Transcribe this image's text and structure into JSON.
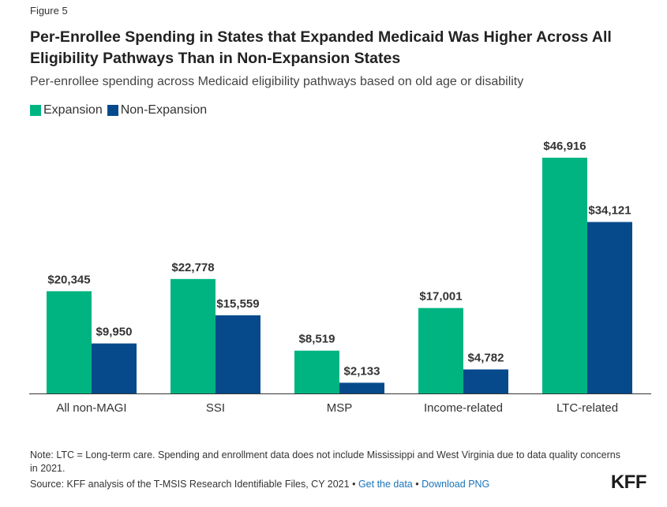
{
  "figure_label": "Figure 5",
  "title": "Per-Enrollee Spending in States that Expanded Medicaid Was Higher Across All Eligibility Pathways Than in Non-Expansion States",
  "subtitle": "Per-enrollee spending across Medicaid eligibility pathways based on old age or disability",
  "colors": {
    "expansion": "#00b482",
    "non_expansion": "#064a8c",
    "axis": "#333333"
  },
  "chart_data": {
    "type": "bar",
    "categories": [
      "All non-MAGI",
      "SSI",
      "MSP",
      "Income-related",
      "LTC-related"
    ],
    "series": [
      {
        "name": "Expansion",
        "values": [
          20345,
          22778,
          8519,
          17001,
          46916
        ],
        "labels": [
          "$20,345",
          "$22,778",
          "$8,519",
          "$17,001",
          "$46,916"
        ]
      },
      {
        "name": "Non-Expansion",
        "values": [
          9950,
          15559,
          2133,
          4782,
          34121
        ],
        "labels": [
          "$9,950",
          "$15,559",
          "$2,133",
          "$4,782",
          "$34,121"
        ]
      }
    ],
    "ylim": [
      0,
      50000
    ],
    "grid": false,
    "legend": "top-left"
  },
  "note": "Note: LTC = Long-term care. Spending and enrollment data does not include Mississippi and West Virginia due to data quality concerns in 2021.",
  "source": {
    "text": "Source: KFF analysis of the T-MSIS Research Identifiable Files, CY 2021",
    "separator": "•",
    "get_data_link": "Get the data",
    "download_link": "Download PNG"
  },
  "logo": "KFF"
}
